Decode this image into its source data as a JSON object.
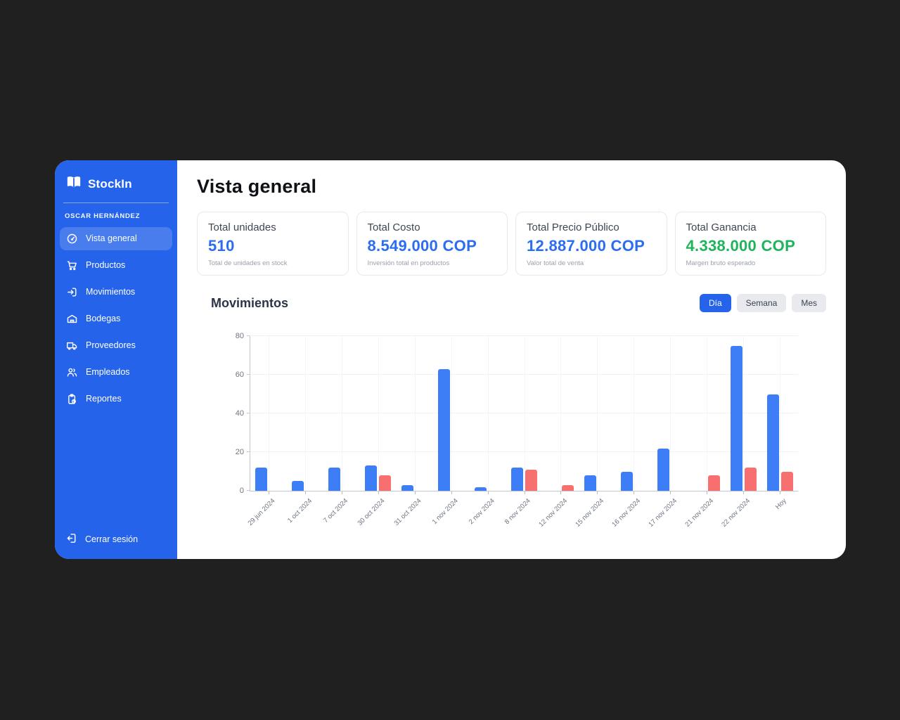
{
  "sidebar": {
    "brand": "StockIn",
    "user": "OSCAR HERNÁNDEZ",
    "items": [
      {
        "label": "Vista general",
        "icon": "gauge-icon",
        "active": true
      },
      {
        "label": "Productos",
        "icon": "cart-icon",
        "active": false
      },
      {
        "label": "Movimientos",
        "icon": "import-arrow-icon",
        "active": false
      },
      {
        "label": "Bodegas",
        "icon": "warehouse-icon",
        "active": false
      },
      {
        "label": "Proveedores",
        "icon": "truck-icon",
        "active": false
      },
      {
        "label": "Empleados",
        "icon": "users-icon",
        "active": false
      },
      {
        "label": "Reportes",
        "icon": "report-icon",
        "active": false
      }
    ],
    "logout_label": "Cerrar sesión"
  },
  "header": {
    "title": "Vista general"
  },
  "stats": [
    {
      "label": "Total unidades",
      "value": "510",
      "caption": "Total de unidades en stock",
      "color": "#2b6cf0"
    },
    {
      "label": "Total Costo",
      "value": "8.549.000 COP",
      "caption": "Inversión total en productos",
      "color": "#2b6cf0"
    },
    {
      "label": "Total Precio Público",
      "value": "12.887.000 COP",
      "caption": "Valor total de venta",
      "color": "#2b6cf0"
    },
    {
      "label": "Total Ganancia",
      "value": "4.338.000 COP",
      "caption": "Margen bruto esperado",
      "color": "#1fb45c"
    }
  ],
  "movimientos": {
    "title": "Movimientos",
    "filters": [
      {
        "label": "Día",
        "active": true
      },
      {
        "label": "Semana",
        "active": false
      },
      {
        "label": "Mes",
        "active": false
      }
    ]
  },
  "chart_data": {
    "type": "bar",
    "categories": [
      "29 jun 2024",
      "1 oct 2024",
      "7 oct 2024",
      "30 oct 2024",
      "31 oct 2024",
      "1 nov 2024",
      "2 nov 2024",
      "8 nov 2024",
      "12 nov 2024",
      "15 nov 2024",
      "16 nov 2024",
      "17 nov 2024",
      "21 nov 2024",
      "22 nov 2024",
      "Hoy"
    ],
    "series": [
      {
        "name": "blue-series",
        "color": "#3d7df6",
        "values": [
          12,
          5,
          12,
          13,
          3,
          63,
          2,
          12,
          0,
          8,
          10,
          22,
          0,
          75,
          50
        ]
      },
      {
        "name": "red-series",
        "color": "#f76f6f",
        "values": [
          0,
          0,
          0,
          8,
          0,
          0,
          0,
          11,
          3,
          0,
          0,
          0,
          8,
          12,
          10
        ]
      }
    ],
    "ylim": [
      0,
      80
    ],
    "yticks": [
      0,
      20,
      40,
      60,
      80
    ],
    "grid": true,
    "legend": "none"
  }
}
